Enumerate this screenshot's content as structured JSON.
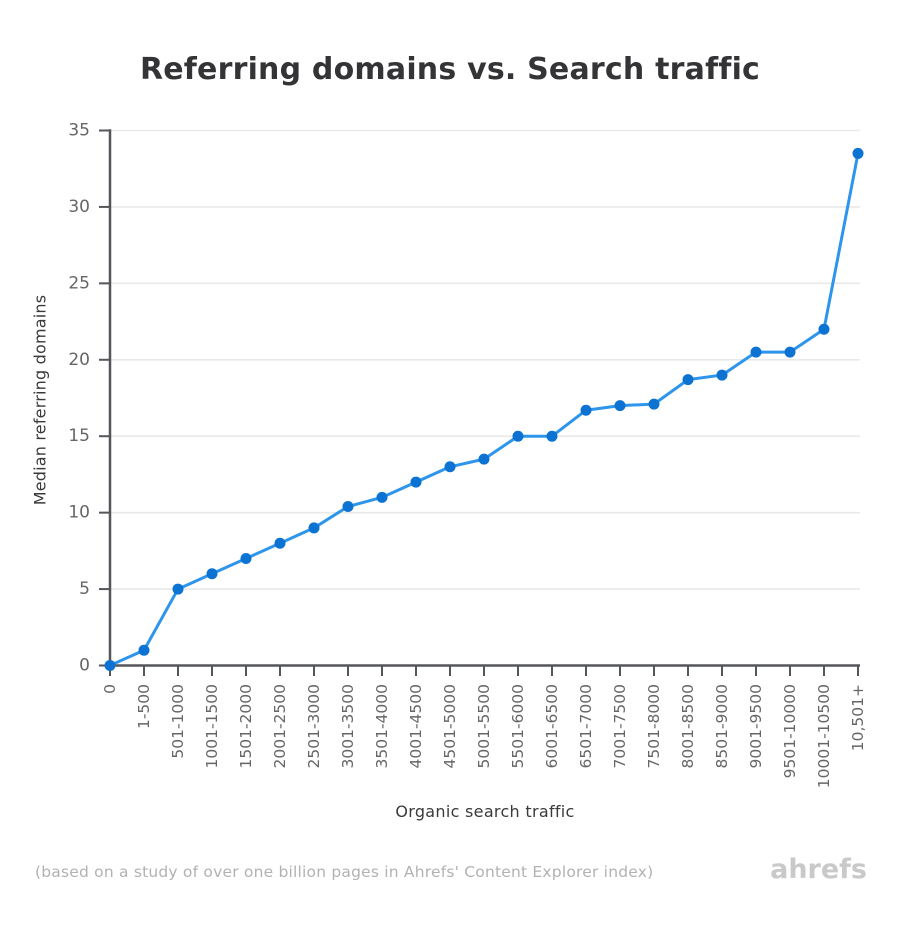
{
  "chart_data": {
    "type": "line",
    "title": "Referring domains vs. Search traffic",
    "xlabel": "Organic search traffic",
    "ylabel": "Median referring domains",
    "categories": [
      "0",
      "1-500",
      "501-1000",
      "1001-1500",
      "1501-2000",
      "2001-2500",
      "2501-3000",
      "3001-3500",
      "3501-4000",
      "4001-4500",
      "4501-5000",
      "5001-5500",
      "5501-6000",
      "6001-6500",
      "6501-7000",
      "7001-7500",
      "7501-8000",
      "8001-8500",
      "8501-9000",
      "9001-9500",
      "9501-10000",
      "10001-10500",
      "10,501+"
    ],
    "series": [
      {
        "name": "Median referring domains",
        "values": [
          0,
          1,
          5,
          6,
          7,
          8,
          9,
          10.4,
          11,
          12,
          13,
          13.5,
          15,
          15,
          16.7,
          17,
          17.1,
          18.7,
          19,
          20.5,
          20.5,
          22,
          33.5
        ]
      }
    ],
    "ylim": [
      0,
      35
    ],
    "yticks": [
      0,
      5,
      10,
      15,
      20,
      25,
      30,
      35
    ],
    "grid": "horizontal",
    "legend": false,
    "colors": {
      "line": "#2e95ec",
      "marker": "#0d73d2",
      "axis": "#55565a",
      "grid": "#e9e9e9",
      "tick_label": "#666669",
      "title": "#343437",
      "axis_title": "#3a3a3c",
      "footer_note": "#b2b2b2",
      "logo": "#c9c9c9"
    }
  },
  "footer": {
    "note": "(based on a study of over one billion pages in Ahrefs' Content Explorer index)",
    "logo": "ahrefs"
  }
}
